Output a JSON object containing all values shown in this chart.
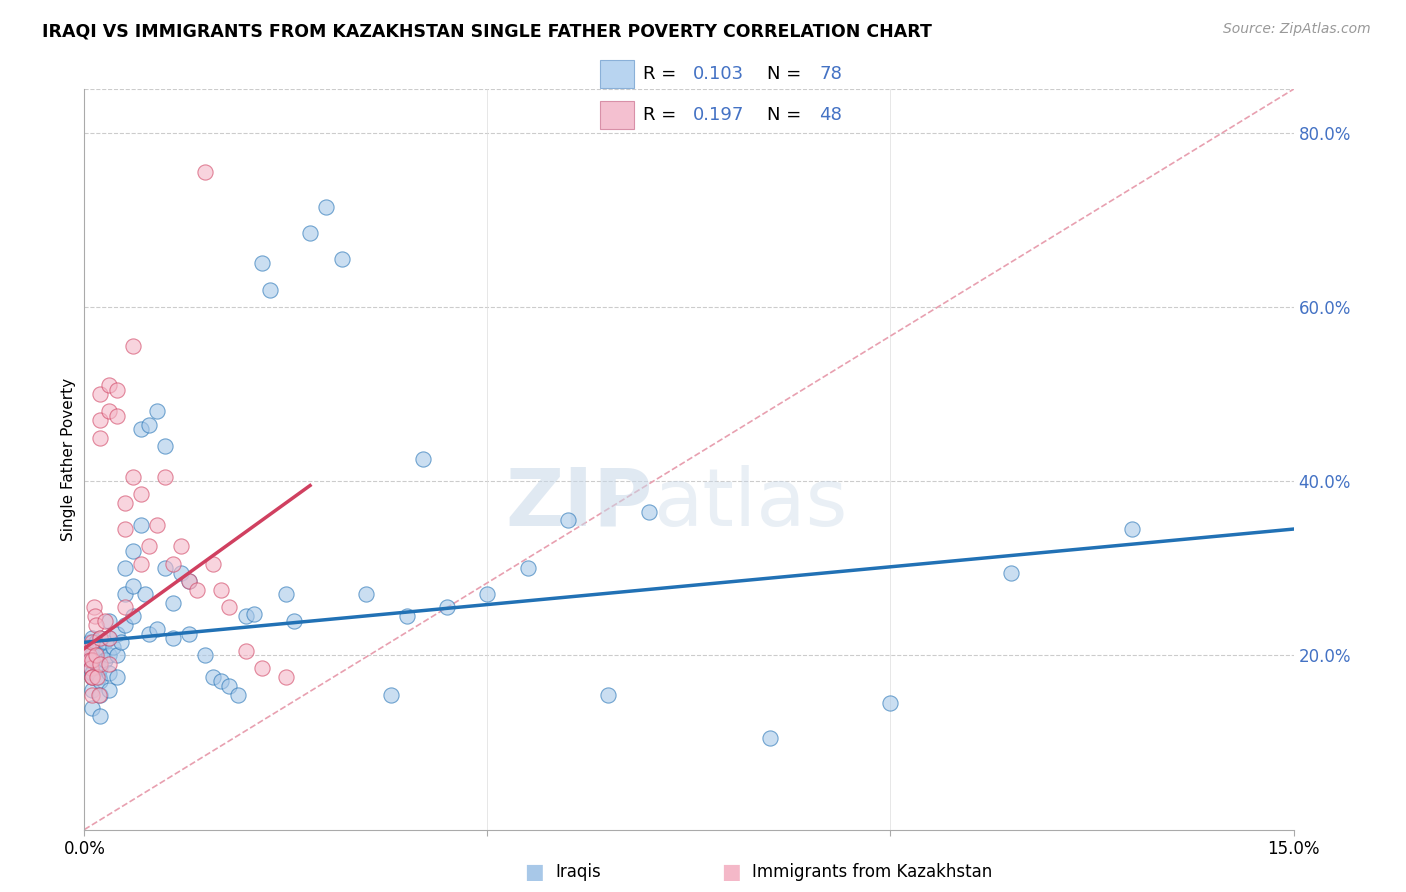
{
  "title": "IRAQI VS IMMIGRANTS FROM KAZAKHSTAN SINGLE FATHER POVERTY CORRELATION CHART",
  "source": "Source: ZipAtlas.com",
  "ylabel": "Single Father Poverty",
  "legend_label_blue": "Iraqis",
  "legend_label_pink": "Immigrants from Kazakhstan",
  "color_blue": "#a8c8e8",
  "color_pink": "#f4b8c8",
  "color_blue_dark": "#2171b5",
  "color_pink_dark": "#d04060",
  "color_diag": "#e0b0c0",
  "watermark_zip": "ZIP",
  "watermark_atlas": "atlas",
  "xlim": [
    0.0,
    0.15
  ],
  "ylim": [
    0.0,
    0.85
  ],
  "blue_line_x": [
    0.0,
    0.15
  ],
  "blue_line_y": [
    0.215,
    0.345
  ],
  "pink_line_x": [
    0.0,
    0.028
  ],
  "pink_line_y": [
    0.208,
    0.395
  ],
  "blue_points_x": [
    0.0007,
    0.0007,
    0.0007,
    0.0008,
    0.0009,
    0.001,
    0.001,
    0.001,
    0.001,
    0.001,
    0.001,
    0.0015,
    0.0015,
    0.0017,
    0.0018,
    0.002,
    0.002,
    0.002,
    0.002,
    0.002,
    0.002,
    0.002,
    0.0025,
    0.0025,
    0.003,
    0.003,
    0.003,
    0.003,
    0.003,
    0.0035,
    0.004,
    0.004,
    0.004,
    0.0045,
    0.005,
    0.005,
    0.005,
    0.006,
    0.006,
    0.006,
    0.007,
    0.007,
    0.0075,
    0.008,
    0.008,
    0.009,
    0.009,
    0.01,
    0.01,
    0.011,
    0.011,
    0.012,
    0.013,
    0.013,
    0.015,
    0.016,
    0.017,
    0.018,
    0.019,
    0.02,
    0.021,
    0.022,
    0.023,
    0.025,
    0.026,
    0.028,
    0.03,
    0.032,
    0.035,
    0.038,
    0.04,
    0.042,
    0.045,
    0.05,
    0.055,
    0.06,
    0.065,
    0.07,
    0.085,
    0.1,
    0.115,
    0.13
  ],
  "blue_points_y": [
    0.215,
    0.205,
    0.195,
    0.185,
    0.175,
    0.22,
    0.21,
    0.2,
    0.18,
    0.16,
    0.14,
    0.215,
    0.195,
    0.185,
    0.175,
    0.22,
    0.21,
    0.2,
    0.185,
    0.17,
    0.155,
    0.13,
    0.215,
    0.195,
    0.24,
    0.22,
    0.2,
    0.18,
    0.16,
    0.21,
    0.225,
    0.2,
    0.175,
    0.215,
    0.3,
    0.27,
    0.235,
    0.32,
    0.28,
    0.245,
    0.46,
    0.35,
    0.27,
    0.465,
    0.225,
    0.48,
    0.23,
    0.44,
    0.3,
    0.26,
    0.22,
    0.295,
    0.285,
    0.225,
    0.2,
    0.175,
    0.17,
    0.165,
    0.155,
    0.245,
    0.248,
    0.65,
    0.62,
    0.27,
    0.24,
    0.685,
    0.715,
    0.655,
    0.27,
    0.155,
    0.245,
    0.425,
    0.255,
    0.27,
    0.3,
    0.355,
    0.155,
    0.365,
    0.105,
    0.145,
    0.295,
    0.345
  ],
  "pink_points_x": [
    0.0005,
    0.0006,
    0.0007,
    0.0008,
    0.0009,
    0.001,
    0.001,
    0.001,
    0.001,
    0.0012,
    0.0013,
    0.0014,
    0.0015,
    0.0016,
    0.0018,
    0.002,
    0.002,
    0.002,
    0.002,
    0.002,
    0.0025,
    0.003,
    0.003,
    0.003,
    0.003,
    0.004,
    0.004,
    0.005,
    0.005,
    0.005,
    0.006,
    0.006,
    0.007,
    0.007,
    0.008,
    0.009,
    0.01,
    0.011,
    0.012,
    0.013,
    0.014,
    0.015,
    0.016,
    0.017,
    0.018,
    0.02,
    0.022,
    0.025
  ],
  "pink_points_y": [
    0.21,
    0.2,
    0.195,
    0.185,
    0.175,
    0.215,
    0.195,
    0.175,
    0.155,
    0.255,
    0.245,
    0.235,
    0.2,
    0.175,
    0.155,
    0.5,
    0.47,
    0.45,
    0.22,
    0.19,
    0.24,
    0.51,
    0.48,
    0.22,
    0.19,
    0.505,
    0.475,
    0.375,
    0.345,
    0.255,
    0.555,
    0.405,
    0.385,
    0.305,
    0.325,
    0.35,
    0.405,
    0.305,
    0.325,
    0.285,
    0.275,
    0.755,
    0.305,
    0.275,
    0.255,
    0.205,
    0.185,
    0.175
  ]
}
